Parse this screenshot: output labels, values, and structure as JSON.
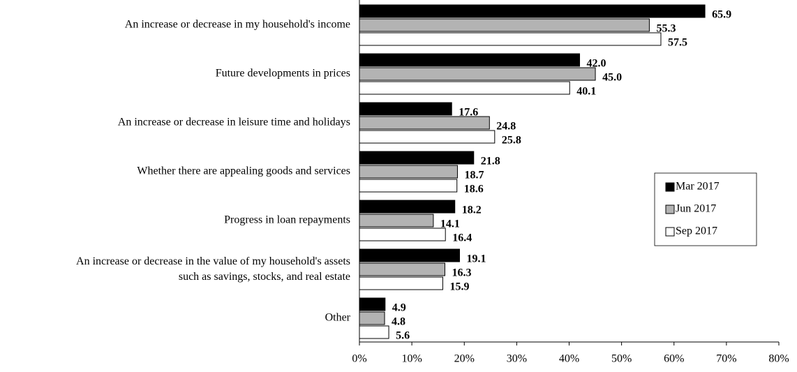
{
  "chart_data": {
    "type": "bar",
    "orientation": "horizontal",
    "categories": [
      "An increase or decrease in my household's income",
      "Future developments in prices",
      "An increase or decrease in leisure time and holidays",
      "Whether there are appealing goods and services",
      "Progress in loan repayments",
      "An increase or decrease in the value of my household's assets\nsuch as savings, stocks, and real estate",
      "Other"
    ],
    "series": [
      {
        "name": "Mar 2017",
        "color": "#000000",
        "values": [
          65.9,
          42.0,
          17.6,
          21.8,
          18.2,
          19.1,
          4.9
        ],
        "value_labels": [
          "65.9",
          "42.0",
          "17.6",
          "21.8",
          "18.2",
          "19.1",
          "4.9"
        ]
      },
      {
        "name": "Jun 2017",
        "color": "#b3b3b3",
        "values": [
          55.3,
          45.0,
          24.8,
          18.7,
          14.1,
          16.3,
          4.8
        ],
        "value_labels": [
          "55.3",
          "45.0",
          "24.8",
          "18.7",
          "14.1",
          "16.3",
          "4.8"
        ]
      },
      {
        "name": "Sep 2017",
        "color": "#ffffff",
        "values": [
          57.5,
          40.1,
          25.8,
          18.6,
          16.4,
          15.9,
          5.6
        ],
        "value_labels": [
          "57.5",
          "40.1",
          "25.8",
          "18.6",
          "16.4",
          "15.9",
          "5.6"
        ]
      }
    ],
    "xlim": [
      0,
      80
    ],
    "xticks": [
      {
        "value": 0,
        "label": "0%"
      },
      {
        "value": 10,
        "label": "10%"
      },
      {
        "value": 20,
        "label": "20%"
      },
      {
        "value": 30,
        "label": "30%"
      },
      {
        "value": 40,
        "label": "40%"
      },
      {
        "value": 50,
        "label": "50%"
      },
      {
        "value": 60,
        "label": "60%"
      },
      {
        "value": 70,
        "label": "70%"
      },
      {
        "value": 80,
        "label": "80%"
      }
    ],
    "legend": "right",
    "grid": false
  }
}
